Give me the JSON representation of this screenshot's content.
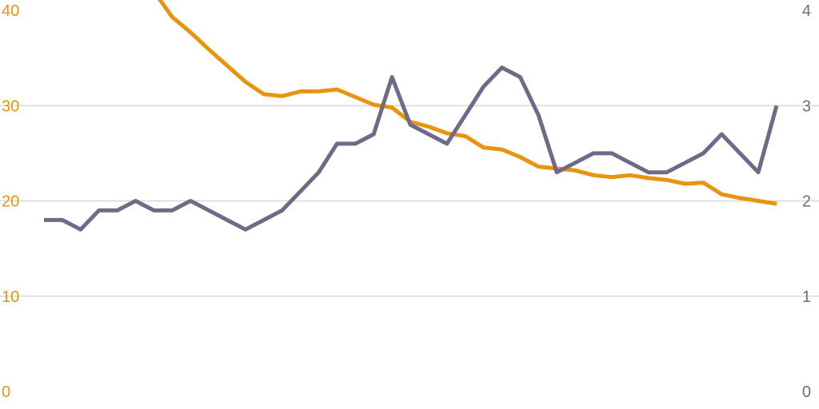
{
  "chart_data": {
    "type": "line",
    "title": "",
    "xlabel": "",
    "ylabel": "",
    "grid": true,
    "legend": "none",
    "x": [
      0,
      1,
      2,
      3,
      4,
      5,
      6,
      7,
      8,
      9,
      10,
      11,
      12,
      13,
      14,
      15,
      16,
      17,
      18,
      19,
      20,
      21,
      22,
      23,
      24,
      25,
      26,
      27,
      28,
      29,
      30,
      31,
      32,
      33,
      34,
      35,
      36,
      37,
      38,
      39,
      40
    ],
    "y_left": {
      "range": [
        0,
        40
      ],
      "ticks": [
        "0",
        "10",
        "20",
        "30",
        "40"
      ],
      "color": "#e8940f"
    },
    "y_right": {
      "range": [
        0,
        4
      ],
      "ticks": [
        "0",
        "1",
        "2",
        "3",
        "4"
      ],
      "color": "#6e6a88"
    },
    "series": [
      {
        "axis": "left",
        "color": "#e8940f",
        "values": [
          null,
          null,
          null,
          null,
          null,
          42.3,
          42.0,
          39.3,
          37.7,
          35.9,
          34.2,
          32.5,
          31.2,
          31.0,
          31.5,
          31.5,
          31.7,
          30.9,
          30.1,
          29.8,
          28.3,
          27.8,
          27.1,
          26.8,
          25.6,
          25.4,
          24.6,
          23.6,
          23.4,
          23.2,
          22.7,
          22.5,
          22.7,
          22.4,
          22.2,
          21.8,
          21.9,
          20.7,
          20.3,
          20.0,
          19.7
        ]
      },
      {
        "axis": "right",
        "color": "#6e6a88",
        "values": [
          1.8,
          1.8,
          1.7,
          1.9,
          1.9,
          2.0,
          1.9,
          1.9,
          2.0,
          1.9,
          1.8,
          1.7,
          1.8,
          1.9,
          2.1,
          2.3,
          2.6,
          2.6,
          2.7,
          3.3,
          2.8,
          2.7,
          2.6,
          2.9,
          3.2,
          3.4,
          3.3,
          2.9,
          2.3,
          2.4,
          2.5,
          2.5,
          2.4,
          2.3,
          2.3,
          2.4,
          2.5,
          2.7,
          2.5,
          2.3,
          3.0
        ]
      }
    ]
  }
}
